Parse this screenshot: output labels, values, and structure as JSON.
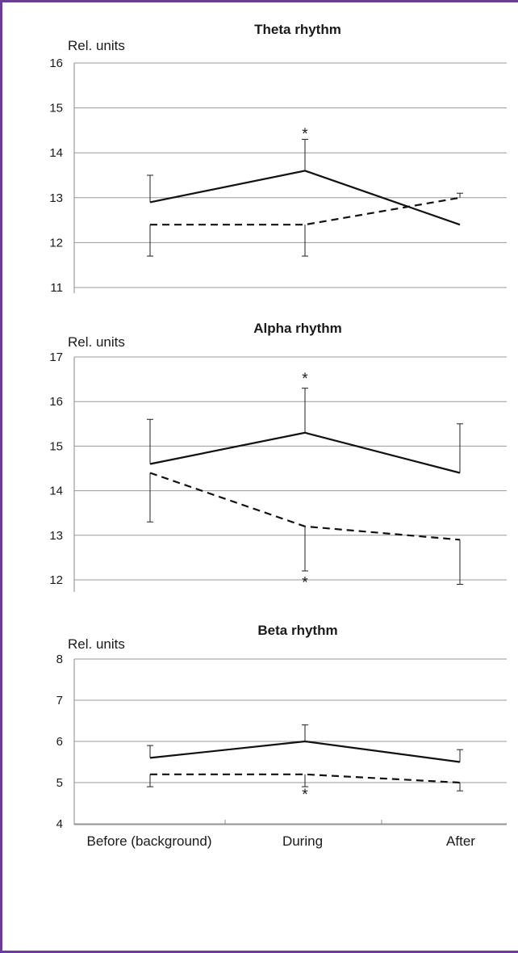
{
  "chart_data": [
    {
      "type": "line",
      "title": "Theta rhythm",
      "ylabel": "Rel. units",
      "ylim": [
        11,
        16
      ],
      "yticks": [
        11,
        12,
        13,
        14,
        15,
        16
      ],
      "categories": [
        "Before (background)",
        "During",
        "After"
      ],
      "grid": true,
      "series": [
        {
          "line_style": "solid",
          "values": [
            12.9,
            13.6,
            12.4
          ],
          "error_up": [
            0.6,
            0.7,
            0
          ],
          "error_down": [
            0,
            0,
            0
          ]
        },
        {
          "line_style": "dashed",
          "values": [
            12.4,
            12.4,
            13.0
          ],
          "error_up": [
            0,
            0,
            0.1
          ],
          "error_down": [
            0.7,
            0.7,
            0
          ]
        }
      ],
      "annotations": [
        {
          "text": "*",
          "category": 1,
          "value": 14.45
        }
      ]
    },
    {
      "type": "line",
      "title": "Alpha rhythm",
      "ylabel": "Rel. units",
      "ylim": [
        12,
        17
      ],
      "yticks": [
        12,
        13,
        14,
        15,
        16,
        17
      ],
      "categories": [
        "Before (background)",
        "During",
        "After"
      ],
      "grid": true,
      "series": [
        {
          "line_style": "solid",
          "values": [
            14.6,
            15.3,
            14.4
          ],
          "error_up": [
            1.0,
            1.0,
            1.1
          ],
          "error_down": [
            0,
            0,
            0
          ]
        },
        {
          "line_style": "dashed",
          "values": [
            14.4,
            13.2,
            12.9
          ],
          "error_up": [
            0,
            0,
            0
          ],
          "error_down": [
            1.1,
            1.0,
            1.0
          ]
        }
      ],
      "annotations": [
        {
          "text": "*",
          "category": 1,
          "value": 16.55
        },
        {
          "text": "*",
          "category": 1,
          "value": 11.97
        }
      ]
    },
    {
      "type": "line",
      "title": "Beta rhythm",
      "ylabel": "Rel. units",
      "ylim": [
        4,
        8
      ],
      "yticks": [
        4,
        5,
        6,
        7,
        8
      ],
      "categories": [
        "Before (background)",
        "During",
        "After"
      ],
      "grid": true,
      "series": [
        {
          "line_style": "solid",
          "values": [
            5.6,
            6.0,
            5.5
          ],
          "error_up": [
            0.3,
            0.4,
            0.3
          ],
          "error_down": [
            0,
            0,
            0
          ]
        },
        {
          "line_style": "dashed",
          "values": [
            5.2,
            5.2,
            5.0
          ],
          "error_up": [
            0,
            0,
            0
          ],
          "error_down": [
            0.3,
            0.3,
            0.2
          ]
        }
      ],
      "annotations": [
        {
          "text": "*",
          "category": 1,
          "value": 4.75
        }
      ]
    }
  ]
}
